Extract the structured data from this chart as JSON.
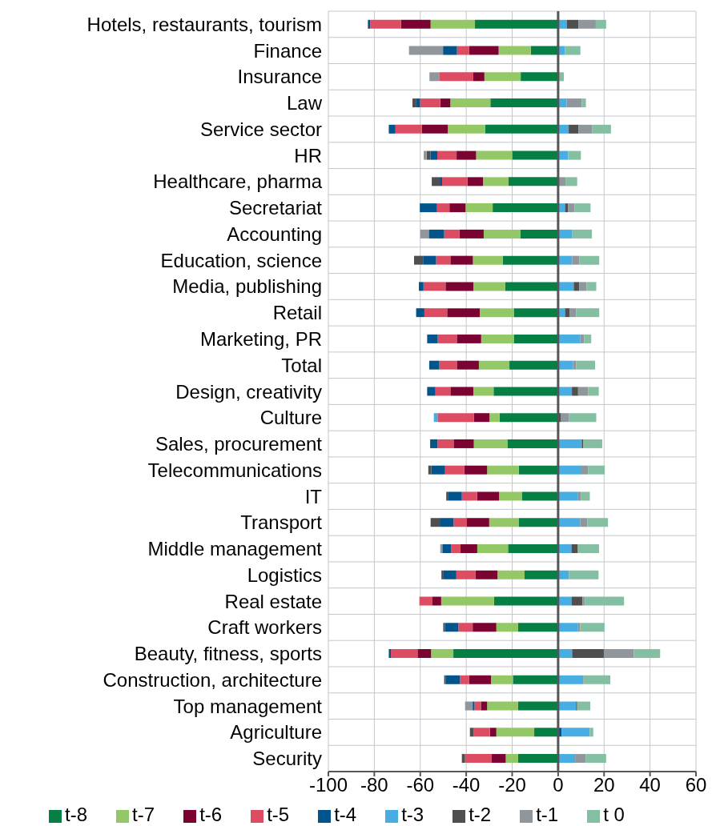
{
  "chart_data": {
    "type": "bar",
    "orientation": "horizontal",
    "stacked": true,
    "categories": [
      "Hotels, restaurants, tourism",
      "Finance",
      "Insurance",
      "Law",
      "Service sector",
      "HR",
      "Healthcare, pharma",
      "Secretariat",
      "Accounting",
      "Education, science",
      "Media, publishing",
      "Retail",
      "Marketing, PR",
      "Total",
      "Design, creativity",
      "Culture",
      "Sales, procurement",
      "Telecommunications",
      "IT",
      "Transport",
      "Middle management",
      "Logistics",
      "Real estate",
      "Craft workers",
      "Beauty, fitness, sports",
      "Construction, architecture",
      "Top management",
      "Agriculture",
      "Security"
    ],
    "series": [
      {
        "name": "t-8",
        "color": "#067f45",
        "values": [
          -36.2,
          -11.9,
          -16.3,
          -29.5,
          -31.7,
          -20,
          -21.6,
          -28.5,
          -16.5,
          -24.1,
          -23.1,
          -19.3,
          -19.3,
          -21.2,
          -28.1,
          -25.5,
          -22.1,
          -17.1,
          -15.8,
          -17.2,
          -21.8,
          -14.6,
          -27.9,
          -17.4,
          -45.6,
          -19.7,
          -17.5,
          -10.4,
          -17.4
        ]
      },
      {
        "name": "t-7",
        "color": "#94c866",
        "values": [
          -19.3,
          -14,
          -15.8,
          -17.4,
          -16.3,
          -15.7,
          -11.1,
          -11.8,
          -15.9,
          -13,
          -13.8,
          -14.8,
          -14.2,
          -13.3,
          -8.8,
          -4.4,
          -14.6,
          -13.8,
          -9.9,
          -12.8,
          -13.4,
          -11.8,
          -23,
          -9.5,
          -9.7,
          -9.5,
          -13.4,
          -16.5,
          -5.4
        ]
      },
      {
        "name": "t-6",
        "color": "#7b0331",
        "values": [
          -12.9,
          -12.8,
          -4.8,
          -4.4,
          -11.3,
          -8.5,
          -6.7,
          -7,
          -10.6,
          -9.8,
          -12.1,
          -14.2,
          -10.6,
          -9.6,
          -10,
          -6.7,
          -8.8,
          -10,
          -9.6,
          -9.7,
          -7.3,
          -9.5,
          -4,
          -10.3,
          -5.9,
          -9.5,
          -2.7,
          -2.8,
          -6.1
        ]
      },
      {
        "name": "t-5",
        "color": "#dc4d64",
        "values": [
          -13.4,
          -5.3,
          -14.9,
          -8.8,
          -11.5,
          -8.4,
          -11.1,
          -5.4,
          -6.6,
          -6.2,
          -9.6,
          -9.9,
          -8.3,
          -7.6,
          -6.5,
          -15.9,
          -7,
          -8.3,
          -6.6,
          -5.8,
          -4,
          -8.4,
          -5.5,
          -6.2,
          -11.6,
          -4,
          -2.8,
          -7,
          -11.6
        ]
      },
      {
        "name": "t-4",
        "color": "#02548c",
        "values": [
          -1,
          -6.1,
          null,
          -1.6,
          -2.9,
          -3,
          -0.7,
          -7.5,
          -6.7,
          -5.7,
          -2,
          -3.6,
          -4.6,
          -4.4,
          -3.6,
          null,
          -3.2,
          -6,
          -6.1,
          -5.7,
          -3.9,
          -5.8,
          null,
          -5.9,
          -0.9,
          -6.3,
          -0.8,
          1.6,
          null
        ]
      },
      {
        "name": "t-3",
        "color": "#48aee2",
        "values": [
          3.8,
          3,
          null,
          3.7,
          4.6,
          4.4,
          null,
          3,
          6.2,
          6.1,
          6.8,
          3,
          9.7,
          6.5,
          6,
          -1.6,
          10.3,
          9.8,
          8.7,
          9.6,
          5.8,
          4.7,
          5.8,
          8.7,
          6.1,
          10.5,
          7.8,
          12.2,
          7.4
        ]
      },
      {
        "name": "t-2",
        "color": "#4f4f4f",
        "values": [
          5.1,
          null,
          null,
          -1.7,
          4.3,
          -1.6,
          -3.8,
          1.4,
          null,
          -3.9,
          2.4,
          2.1,
          null,
          null,
          2.7,
          1.3,
          0.7,
          -1.3,
          -0.7,
          -4.3,
          2.8,
          -0.7,
          4.8,
          -0.7,
          13.8,
          -0.6,
          0.5,
          -1.7,
          -1.4
        ]
      },
      {
        "name": "t-1",
        "color": "#8f969c",
        "values": [
          7.5,
          -14.8,
          -4.2,
          6.6,
          6,
          -1.3,
          3.2,
          2.8,
          -3.7,
          3.1,
          3.2,
          2.8,
          1.6,
          1.4,
          4.4,
          3.5,
          null,
          3.2,
          1.2,
          3.1,
          -0.9,
          null,
          1,
          0.9,
          13.1,
          0.6,
          -3.3,
          null,
          4.7
        ]
      },
      {
        "name": "t 0",
        "color": "#85bfa2",
        "values": [
          4.5,
          6.7,
          2.5,
          1.8,
          8.1,
          5.5,
          5.1,
          6.9,
          8.5,
          8.7,
          4.2,
          10,
          3.1,
          8.2,
          4.6,
          11.8,
          8.2,
          7.3,
          3.9,
          9,
          9.2,
          12.9,
          17.1,
          10.6,
          11.4,
          11.6,
          5.7,
          1.5,
          8.8
        ]
      }
    ],
    "xlim": [
      -100,
      60
    ],
    "xticks": [
      -100,
      -80,
      -60,
      -40,
      -20,
      0,
      20,
      40,
      60
    ],
    "ref_lines": [
      {
        "axis": "x",
        "value": 0,
        "color": "#555555"
      }
    ],
    "grid": true,
    "legend": "bottom"
  }
}
